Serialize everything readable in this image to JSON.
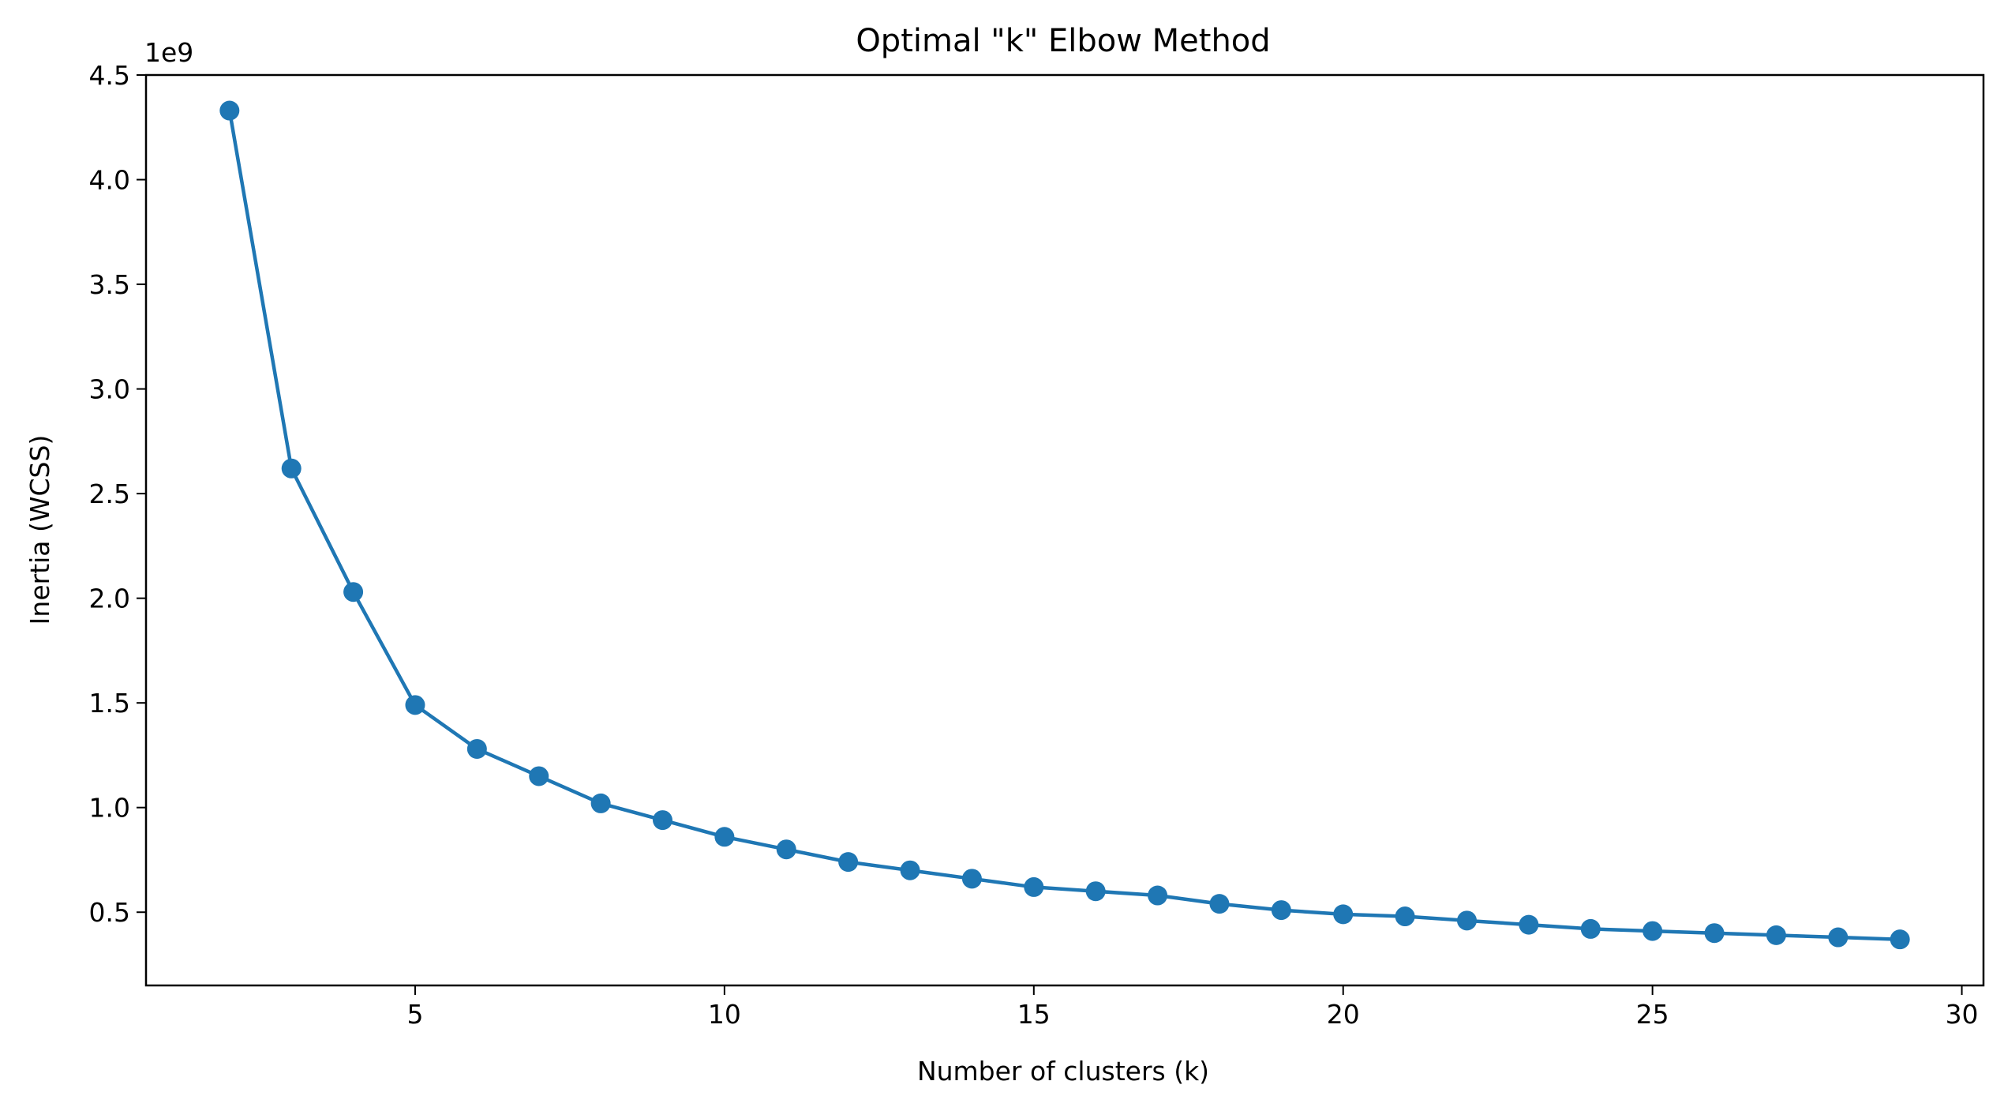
{
  "chart_data": {
    "type": "line",
    "title": "Optimal \"k\" Elbow Method",
    "xlabel": "Number of clusters (k)",
    "ylabel": "Inertia (WCSS)",
    "y_offset_label": "1e9",
    "xlim": [
      0.65,
      30.35
    ],
    "ylim": [
      0.15,
      4.5
    ],
    "xticks": [
      5,
      10,
      15,
      20,
      25,
      30
    ],
    "xtick_labels": [
      "5",
      "10",
      "15",
      "20",
      "25",
      "30"
    ],
    "yticks": [
      0.5,
      1.0,
      1.5,
      2.0,
      2.5,
      3.0,
      3.5,
      4.0,
      4.5
    ],
    "ytick_labels": [
      "0.5",
      "1.0",
      "1.5",
      "2.0",
      "2.5",
      "3.0",
      "3.5",
      "4.0",
      "4.5"
    ],
    "grid": false,
    "color": "#1f77b4",
    "marker": "circle",
    "series": [
      {
        "x": [
          2,
          3,
          4,
          5,
          6,
          7,
          8,
          9,
          10,
          11,
          12,
          13,
          14,
          15,
          16,
          17,
          18,
          19,
          20,
          21,
          22,
          23,
          24,
          25,
          26,
          27,
          28,
          29
        ],
        "values": [
          4.33,
          2.62,
          2.03,
          1.49,
          1.28,
          1.15,
          1.02,
          0.94,
          0.86,
          0.8,
          0.74,
          0.7,
          0.66,
          0.62,
          0.6,
          0.58,
          0.54,
          0.51,
          0.49,
          0.48,
          0.46,
          0.44,
          0.42,
          0.41,
          0.4,
          0.39,
          0.38,
          0.37
        ]
      }
    ]
  }
}
